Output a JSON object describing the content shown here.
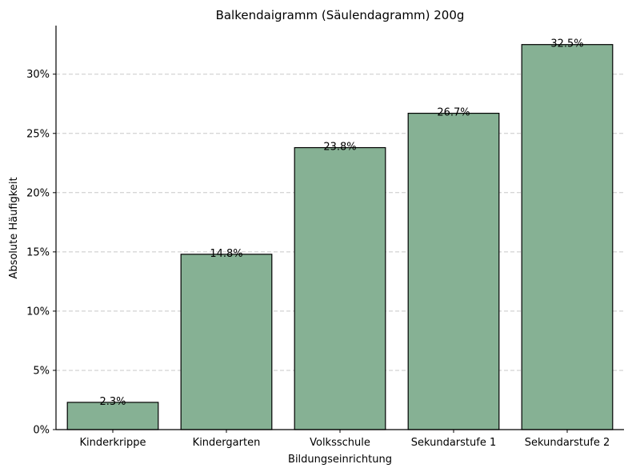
{
  "chart_data": {
    "type": "bar",
    "title": "Balkendaigramm (Säulendagramm) 200g",
    "xlabel": "Bildungseinrichtung",
    "ylabel": "Absolute Häufigkeit",
    "categories": [
      "Kinderkrippe",
      "Kindergarten",
      "Volksschule",
      "Sekundarstufe 1",
      "Sekundarstufe 2"
    ],
    "values": [
      2.3,
      14.8,
      23.8,
      26.7,
      32.5
    ],
    "data_labels": [
      "2.3%",
      "14.8%",
      "23.8%",
      "26.7%",
      "32.5%"
    ],
    "ylim": [
      0,
      34.1
    ],
    "yticks": [
      0,
      5,
      10,
      15,
      20,
      25,
      30
    ],
    "ytick_labels": [
      "0%",
      "5%",
      "10%",
      "15%",
      "20%",
      "25%",
      "30%"
    ],
    "grid": "horizontal dashed",
    "bar_color": "#86b194",
    "bar_edge_color": "#000000"
  }
}
